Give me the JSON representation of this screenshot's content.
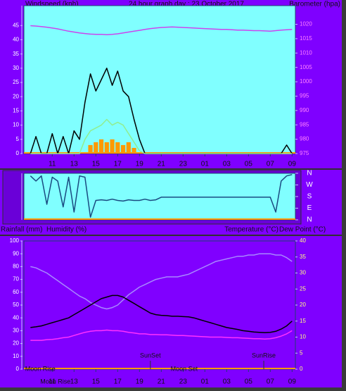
{
  "chart_data": [
    {
      "type": "line",
      "title": "24 hour graph day : 23 October 2017",
      "y_label": "Windspeed (kph)",
      "y2_label": "Barometer (hpa)",
      "background": "#80ffff",
      "x": [
        9,
        9.5,
        10,
        10.5,
        11,
        11.5,
        12,
        12.5,
        13,
        13.5,
        14,
        14.5,
        15,
        15.5,
        16,
        16.5,
        17,
        17.5,
        18,
        18.5,
        19,
        19.5,
        20,
        20.5,
        21,
        21.5,
        22,
        22.5,
        23,
        23.5,
        24,
        24.5,
        25,
        25.5,
        26,
        26.5,
        27,
        27.5,
        28,
        28.5,
        29,
        29.5,
        30,
        30.5,
        31,
        31.5,
        32,
        32.5,
        33
      ],
      "xlim": [
        8.4,
        33.3
      ],
      "xticks": [
        11,
        13,
        15,
        17,
        19,
        21,
        23,
        {
          "value": 25,
          "label": "01"
        },
        {
          "value": 27,
          "label": "03"
        },
        {
          "value": 29,
          "label": "05"
        },
        {
          "value": 31,
          "label": "07"
        },
        {
          "value": 33,
          "label": "09"
        }
      ],
      "ylim": [
        0,
        52
      ],
      "yticks": [
        0,
        5,
        10,
        15,
        20,
        25,
        30,
        35,
        40,
        45
      ],
      "y2lim": [
        975,
        1026.5
      ],
      "y2ticks": [
        975,
        980,
        985,
        990,
        995,
        1000,
        1005,
        1010,
        1015,
        1020
      ],
      "series": [
        {
          "color": "#ff9900",
          "style": "bar",
          "values": [
            0,
            0,
            0,
            0,
            0,
            0,
            0,
            0,
            0,
            0,
            0,
            3,
            4,
            5,
            4,
            5,
            4,
            3,
            4,
            2,
            0,
            0,
            0,
            0,
            0,
            0,
            0,
            0,
            0,
            0,
            0,
            0,
            0,
            0,
            0,
            0,
            0,
            0,
            0,
            0,
            0,
            0,
            0,
            0,
            0,
            0,
            0,
            0,
            0
          ]
        },
        {
          "color": "#000000",
          "values": [
            0,
            6,
            0,
            0,
            7,
            0,
            6,
            0,
            8,
            5,
            18,
            28,
            22,
            26,
            30,
            24,
            29,
            22,
            20,
            12,
            5,
            0,
            0,
            0,
            0,
            0,
            0,
            0,
            0,
            0,
            0,
            0,
            0,
            0,
            0,
            0,
            0,
            0,
            0,
            0,
            0,
            0,
            0,
            0,
            0,
            0,
            0,
            3,
            0
          ]
        },
        {
          "color": "#90ee90",
          "values": [
            0,
            0,
            0,
            0,
            0,
            0,
            0,
            0,
            0,
            0,
            5,
            8,
            9,
            10,
            12,
            10,
            11,
            10,
            7,
            4,
            1,
            0,
            0,
            0,
            0,
            0,
            0,
            0,
            0,
            0,
            0,
            0,
            0,
            0,
            0,
            0,
            0,
            0,
            0,
            0,
            0,
            0,
            0,
            0,
            0,
            0,
            0,
            0,
            0
          ]
        },
        {
          "color": "#cc44ee",
          "axis": "y2",
          "values": [
            1019.5,
            1019.4,
            1019.2,
            1019,
            1018.7,
            1018.4,
            1018,
            1017.6,
            1017.3,
            1017,
            1016.8,
            1016.6,
            1016.5,
            1016.5,
            1016.4,
            1016.5,
            1016.7,
            1017,
            1017.3,
            1017.6,
            1017.9,
            1018.2,
            1018.5,
            1018.7,
            1018.9,
            1019,
            1019.1,
            1019,
            1018.9,
            1018.8,
            1018.7,
            1018.6,
            1018.5,
            1018.4,
            1018.3,
            1018.2,
            1018.2,
            1018.1,
            1018,
            1018,
            1017.9,
            1017.8,
            1017.8,
            1017.7,
            1017.6,
            1017.8,
            1018,
            1018.1,
            1018.2
          ]
        }
      ]
    },
    {
      "type": "line",
      "background": "#80ffff",
      "x": [
        9,
        9.5,
        10,
        10.5,
        11,
        11.5,
        12,
        12.5,
        13,
        13.5,
        14,
        14.5,
        15,
        15.5,
        16,
        16.5,
        17,
        17.5,
        18,
        18.5,
        19,
        19.5,
        20,
        20.5,
        21,
        21.5,
        22,
        22.5,
        23,
        23.5,
        24,
        24.5,
        25,
        25.5,
        26,
        26.5,
        27,
        27.5,
        28,
        28.5,
        29,
        29.5,
        30,
        30.5,
        31,
        31.5,
        32,
        32.5,
        33
      ],
      "xlim": [
        8.4,
        33.3
      ],
      "ylim": [
        0,
        360
      ],
      "yticks": [
        {
          "value": 360,
          "label": "N"
        },
        {
          "value": 270,
          "label": "W"
        },
        {
          "value": 180,
          "label": "S"
        },
        {
          "value": 90,
          "label": "E"
        },
        {
          "value": 0,
          "label": "N"
        }
      ],
      "series": [
        {
          "color": "#1a4a80",
          "values": [
            340,
            300,
            340,
            120,
            330,
            300,
            100,
            330,
            60,
            340,
            330,
            20,
            150,
            155,
            150,
            160,
            150,
            145,
            155,
            150,
            150,
            160,
            150,
            155,
            175,
            175,
            175,
            175,
            175,
            175,
            175,
            175,
            175,
            175,
            175,
            175,
            175,
            175,
            175,
            175,
            175,
            175,
            175,
            175,
            175,
            60,
            300,
            340,
            350
          ]
        }
      ]
    },
    {
      "type": "line",
      "y_labels": [
        "Rainfall (mm)",
        "Humidity (%)"
      ],
      "y2_labels": [
        "Temperature (°C)",
        "Dew Point (°C)"
      ],
      "background": "#8000ff",
      "x": [
        9,
        9.5,
        10,
        10.5,
        11,
        11.5,
        12,
        12.5,
        13,
        13.5,
        14,
        14.5,
        15,
        15.5,
        16,
        16.5,
        17,
        17.5,
        18,
        18.5,
        19,
        19.5,
        20,
        20.5,
        21,
        21.5,
        22,
        22.5,
        23,
        23.5,
        24,
        24.5,
        25,
        25.5,
        26,
        26.5,
        27,
        27.5,
        28,
        28.5,
        29,
        29.5,
        30,
        30.5,
        31,
        31.5,
        32,
        32.5,
        33
      ],
      "xlim": [
        8.4,
        33.3
      ],
      "xticks": [
        11,
        13,
        15,
        17,
        19,
        21,
        23,
        {
          "value": 25,
          "label": "01"
        },
        {
          "value": 27,
          "label": "03"
        },
        {
          "value": 29,
          "label": "05"
        },
        {
          "value": 31,
          "label": "07"
        },
        {
          "value": 33,
          "label": "09"
        }
      ],
      "ylim": [
        0,
        100
      ],
      "yticks": [
        0,
        10,
        20,
        30,
        40,
        50,
        60,
        70,
        80,
        90,
        100
      ],
      "y2lim": [
        0,
        40
      ],
      "y2ticks": [
        0,
        5,
        10,
        15,
        20,
        25,
        30,
        35,
        40
      ],
      "series": [
        {
          "color": "#a888ff",
          "values": [
            80,
            79,
            77,
            75,
            72,
            69,
            66,
            63,
            60,
            57,
            55,
            52,
            50,
            48,
            47,
            48,
            50,
            54,
            58,
            61,
            64,
            66,
            68,
            70,
            71,
            72,
            72,
            72,
            73,
            74,
            76,
            78,
            80,
            82,
            84,
            85,
            86,
            87,
            88,
            88,
            89,
            89,
            90,
            90,
            90,
            89,
            89,
            87,
            84
          ]
        },
        {
          "color": "#000000",
          "axis": "y2",
          "values": [
            13,
            13.2,
            13.5,
            14,
            14.5,
            15,
            15.5,
            16,
            17,
            18,
            19,
            20,
            21,
            22,
            22.5,
            23,
            23,
            22.5,
            21.5,
            20.5,
            19.5,
            18.5,
            17.5,
            17,
            16.8,
            16.7,
            16.5,
            16.5,
            16.4,
            16.3,
            16,
            15.5,
            15,
            14.5,
            14,
            13.5,
            13,
            12.7,
            12.4,
            12,
            11.8,
            11.6,
            11.5,
            11.4,
            11.5,
            11.8,
            12.5,
            13.5,
            15
          ]
        },
        {
          "color": "#ff30ff",
          "axis": "y2",
          "values": [
            9,
            9,
            9,
            9.2,
            9.3,
            9.5,
            9.8,
            10,
            10.5,
            11,
            11.5,
            11.8,
            12,
            12,
            12.2,
            12,
            12,
            11.8,
            11.5,
            11.3,
            11,
            11,
            10.8,
            10.8,
            10.7,
            10.7,
            10.6,
            10.5,
            10.5,
            10.4,
            10.3,
            10.2,
            10.1,
            10,
            10,
            10,
            9.9,
            9.8,
            9.8,
            9.7,
            9.6,
            9.5,
            9.5,
            9.4,
            9.5,
            9.8,
            10.3,
            11,
            12
          ]
        }
      ],
      "annotations": [
        {
          "text": "SunSet",
          "x": 20,
          "marker": true,
          "row": 1
        },
        {
          "text": "SunRise",
          "x": 30.4,
          "marker": true,
          "row": 1
        },
        {
          "text": "Moon Set",
          "x": 23.1,
          "marker": false,
          "row": 0
        },
        {
          "text": "Moon Rise",
          "x": 9.9,
          "marker": false,
          "row": 0
        },
        {
          "text": "Moon Rise",
          "x": 9.9,
          "marker": false,
          "row": -1
        }
      ]
    }
  ]
}
